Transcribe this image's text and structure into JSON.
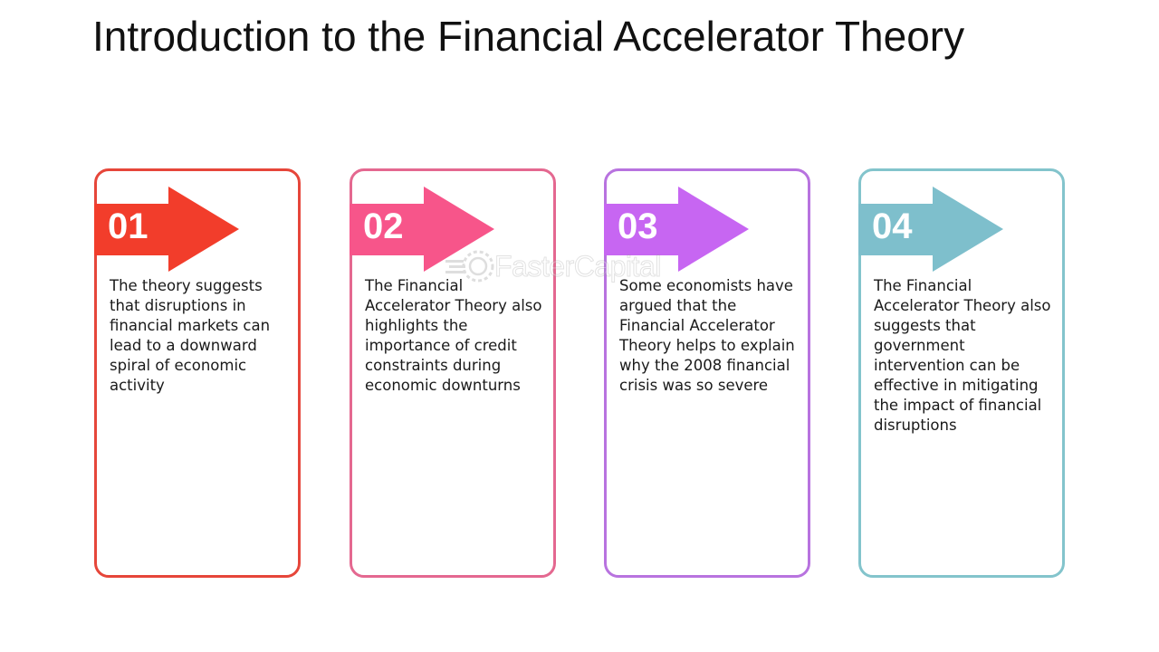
{
  "title": "Introduction to the Financial Accelerator Theory",
  "colors": {
    "step1": "#e6463a",
    "step1_arrow": "#f23d2b",
    "step2": "#e46890",
    "step2_arrow": "#f7558a",
    "step3": "#b873df",
    "step3_arrow": "#c766f2",
    "step4": "#83c4cc",
    "step4_arrow": "#7ebfcc"
  },
  "steps": [
    {
      "number": "01",
      "text": "The theory suggests that disruptions in financial markets can lead to a downward spiral of economic activity",
      "icon": "arrow-right-icon"
    },
    {
      "number": "02",
      "text": "The Financial Accelerator Theory also highlights the importance of credit constraints during economic downturns",
      "icon": "arrow-right-icon"
    },
    {
      "number": "03",
      "text": "Some economists have argued that the Financial Accelerator Theory helps to explain why the 2008 financial crisis was so severe",
      "icon": "arrow-right-icon"
    },
    {
      "number": "04",
      "text": "The Financial Accelerator Theory also suggests that government intervention can be effective in mitigating the impact of financial disruptions",
      "icon": "arrow-right-icon"
    }
  ],
  "watermark": {
    "text": "FasterCapital",
    "icon": "gear-logo-icon"
  }
}
